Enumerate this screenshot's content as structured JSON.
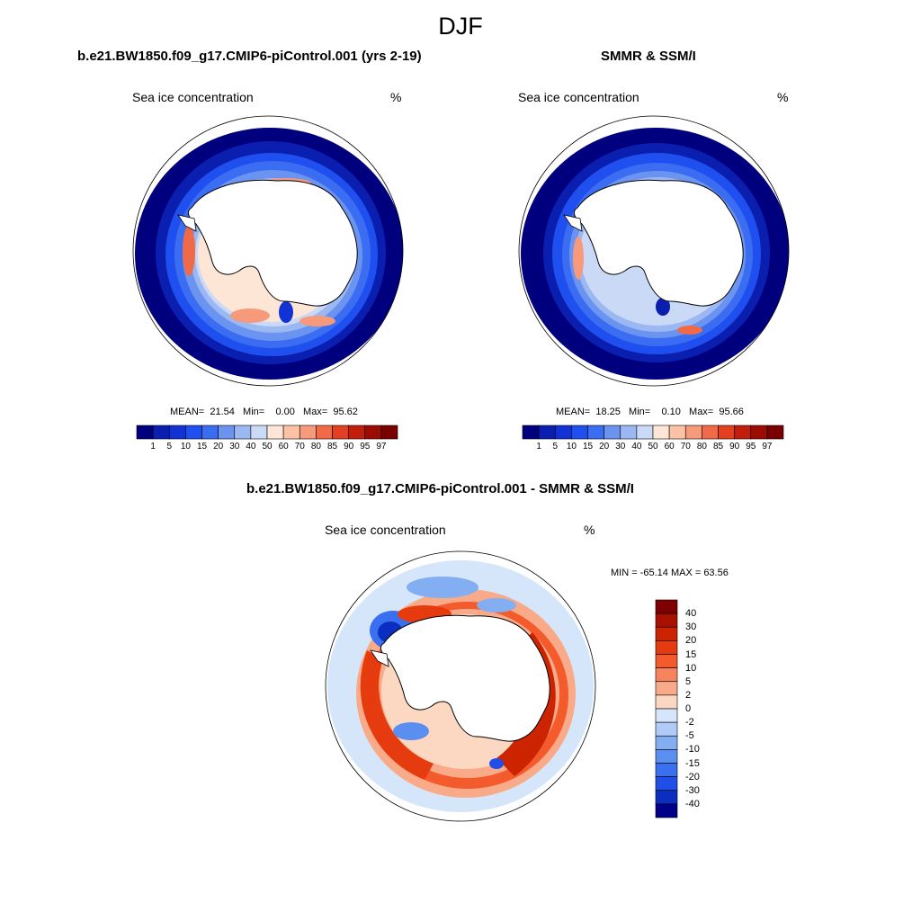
{
  "figure": {
    "season": "DJF"
  },
  "panels": [
    {
      "title": "b.e21.BW1850.f09_g17.CMIP6-piControl.001 (yrs 2-19)",
      "variable": "Sea ice concentration",
      "units": "%",
      "stats": {
        "mean_label": "MEAN=",
        "mean": "21.54",
        "min_label": "Min=",
        "min": "0.00",
        "max_label": "Max=",
        "max": "95.62"
      }
    },
    {
      "title": "SMMR & SSM/I",
      "variable": "Sea ice concentration",
      "units": "%",
      "stats": {
        "mean_label": "MEAN=",
        "mean": "18.25",
        "min_label": "Min=",
        "min": "0.10",
        "max_label": "Max=",
        "max": "95.66"
      }
    }
  ],
  "difference": {
    "title": "b.e21.BW1850.f09_g17.CMIP6-piControl.001 - SMMR & SSM/I",
    "variable": "Sea ice concentration",
    "units": "%",
    "minmax": "MIN = -65.14 MAX =  63.56"
  },
  "colorbar_concentration": {
    "labels": [
      "1",
      "5",
      "10",
      "15",
      "20",
      "30",
      "40",
      "50",
      "60",
      "70",
      "80",
      "85",
      "90",
      "95",
      "97"
    ],
    "colors": [
      "#00007f",
      "#0a1fb0",
      "#1133d6",
      "#1f4fee",
      "#3a6df2",
      "#6b93f0",
      "#9cb8f2",
      "#cad9f6",
      "#fde6d6",
      "#fbc2a6",
      "#f7997b",
      "#f16a48",
      "#e24021",
      "#c21e0c",
      "#9a0c04",
      "#7a0000"
    ]
  },
  "colorbar_difference": {
    "labels": [
      "40",
      "30",
      "20",
      "15",
      "10",
      "5",
      "2",
      "0",
      "-2",
      "-5",
      "-10",
      "-15",
      "-20",
      "-30",
      "-40"
    ],
    "colors": [
      "#7f0000",
      "#a81000",
      "#cc2400",
      "#e53b0f",
      "#f35a2c",
      "#f7845c",
      "#f9aa88",
      "#fcd8c3",
      "#d6e6fa",
      "#b0ccf6",
      "#84aef2",
      "#5a8ef0",
      "#3a6ff0",
      "#1f4fe6",
      "#0a2fc0",
      "#00008a"
    ]
  }
}
